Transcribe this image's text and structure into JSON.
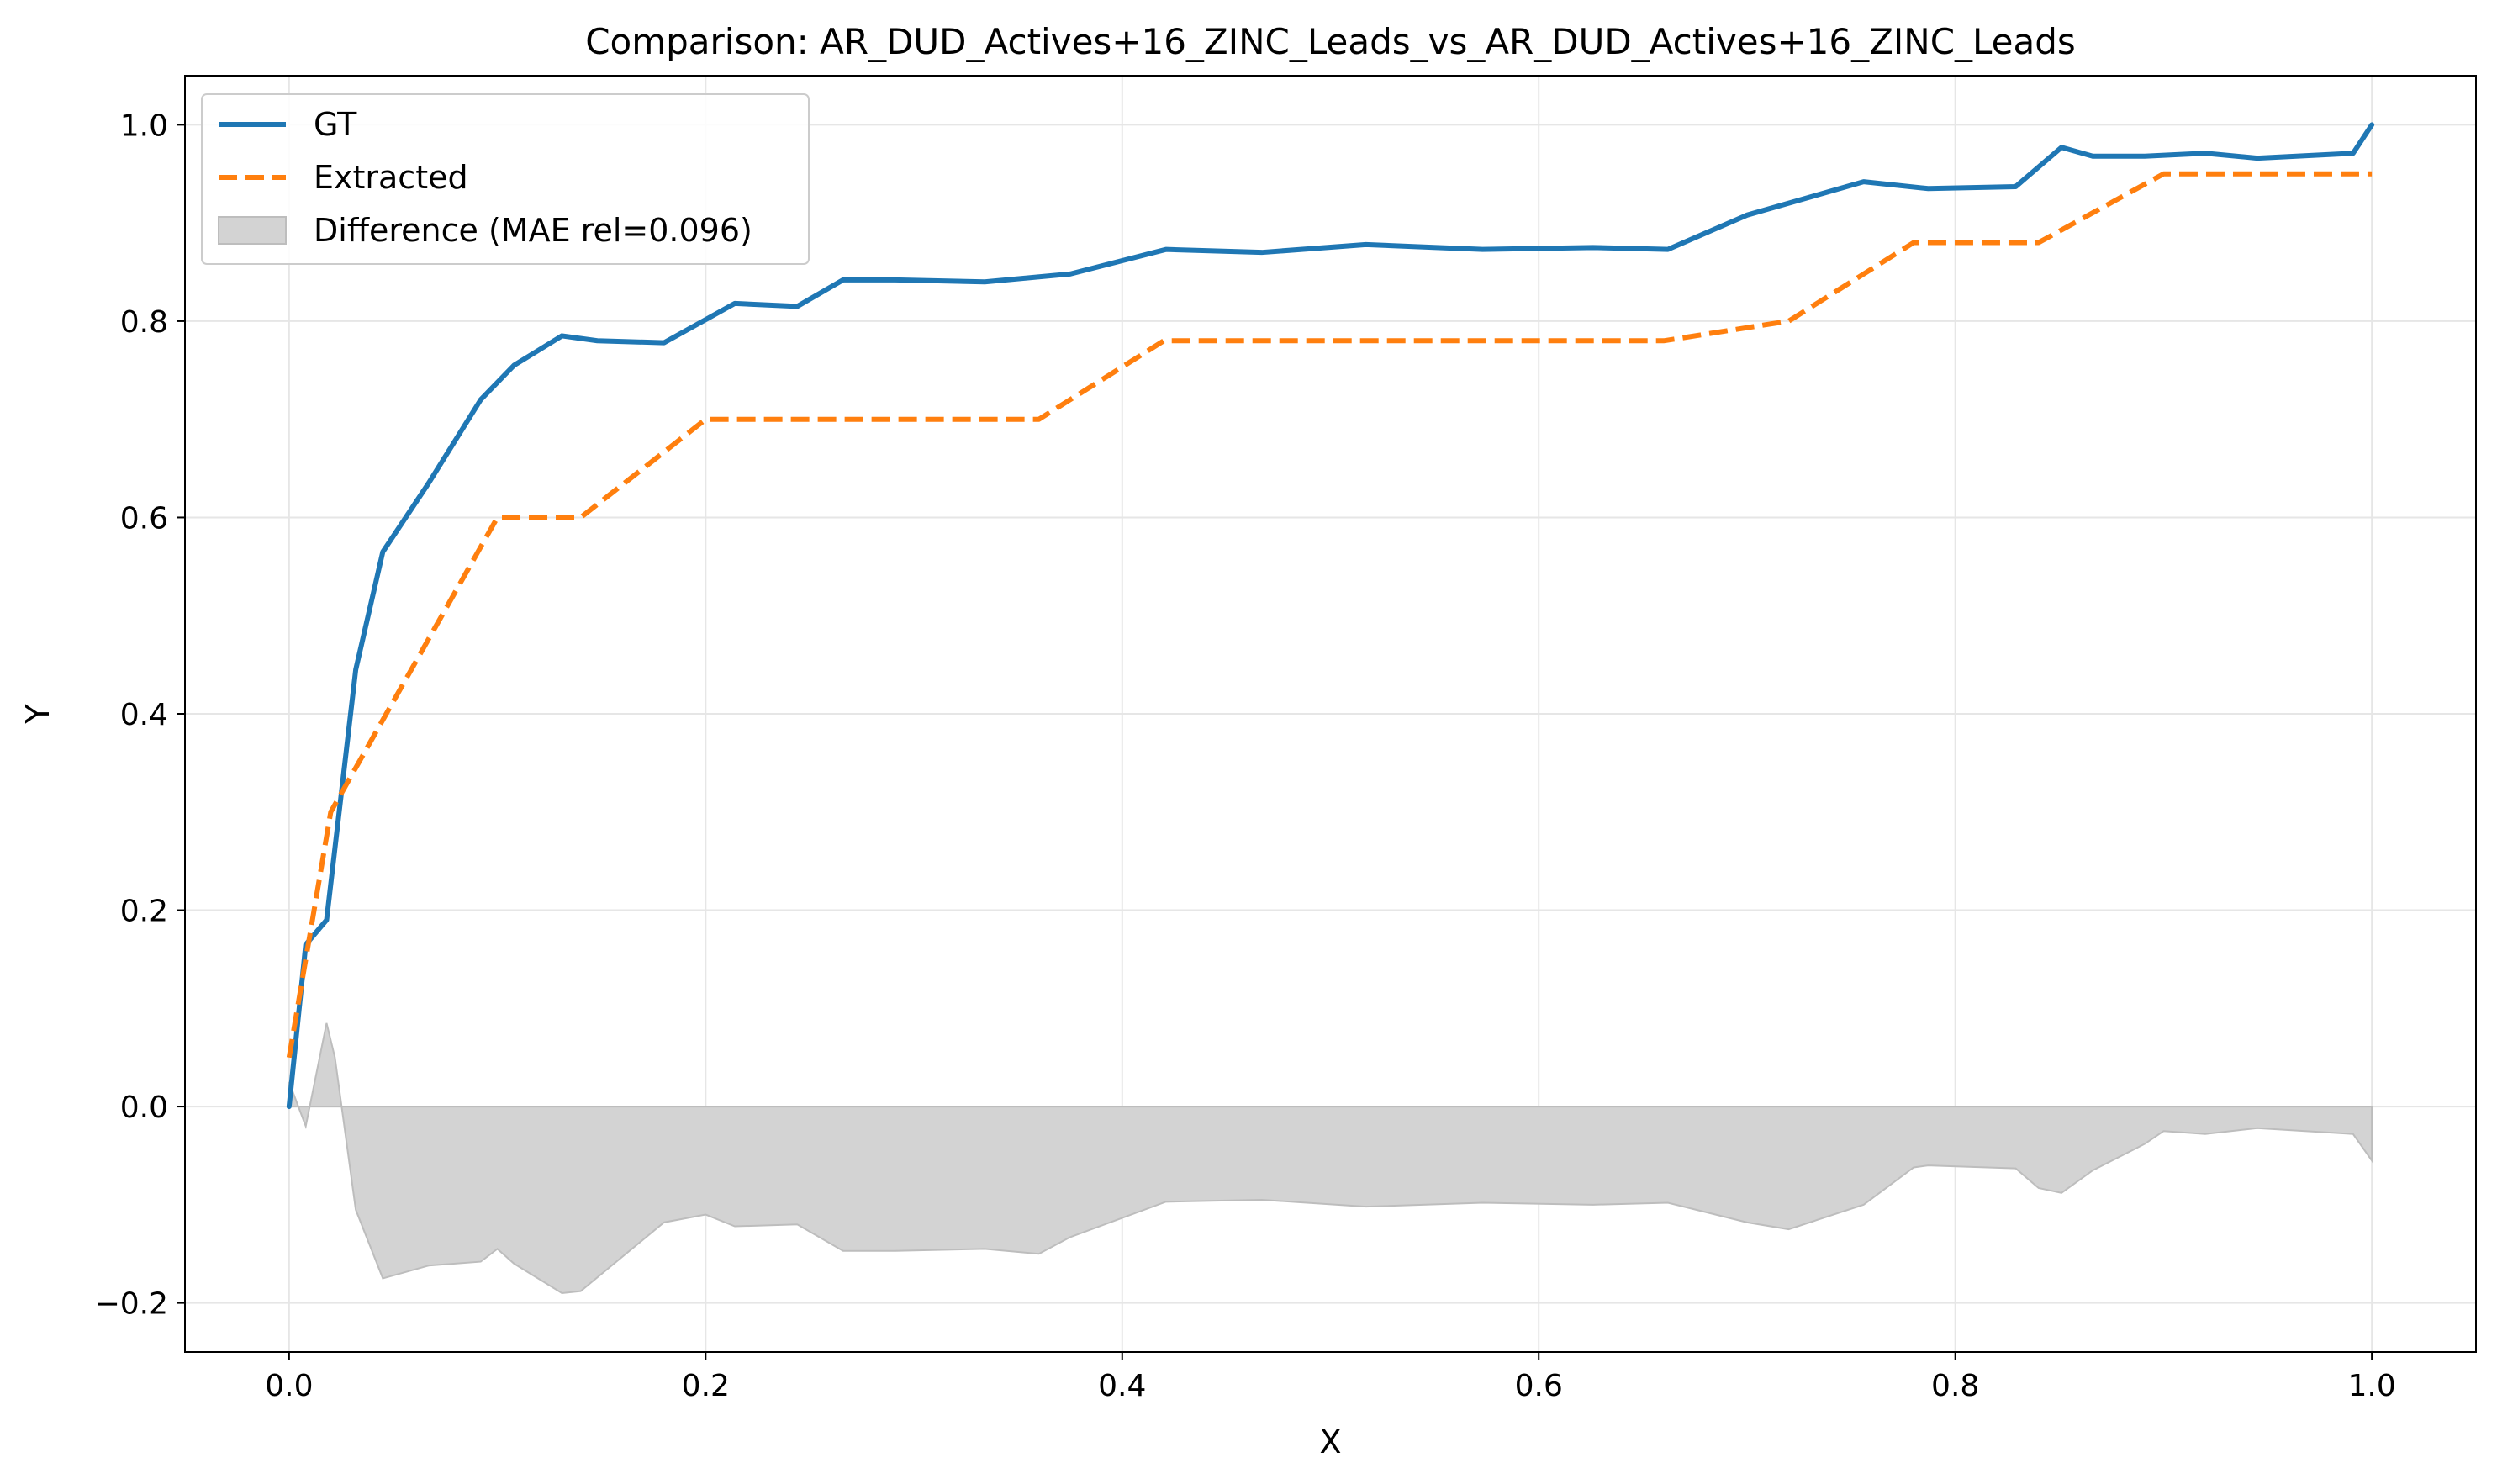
{
  "chart_data": {
    "type": "line",
    "title": "Comparison: AR_DUD_Actives+16_ZINC_Leads_vs_AR_DUD_Actives+16_ZINC_Leads",
    "xlabel": "X",
    "ylabel": "Y",
    "xlim": [
      -0.05,
      1.05
    ],
    "ylim": [
      -0.25,
      1.05
    ],
    "xticks": [
      0.0,
      0.2,
      0.4,
      0.6,
      0.8,
      1.0
    ],
    "xtick_labels": [
      "0.0",
      "0.2",
      "0.4",
      "0.6",
      "0.8",
      "1.0"
    ],
    "yticks": [
      -0.2,
      0.0,
      0.2,
      0.4,
      0.6,
      0.8,
      1.0
    ],
    "ytick_labels": [
      "−0.2",
      "0.0",
      "0.2",
      "0.4",
      "0.6",
      "0.8",
      "1.0"
    ],
    "grid": true,
    "legend_position": "top-left",
    "series": [
      {
        "name": "GT",
        "color": "#1f77b4",
        "style": "solid",
        "x": [
          0.0,
          0.008,
          0.018,
          0.032,
          0.045,
          0.067,
          0.092,
          0.108,
          0.131,
          0.148,
          0.18,
          0.214,
          0.244,
          0.266,
          0.291,
          0.334,
          0.375,
          0.421,
          0.467,
          0.517,
          0.573,
          0.626,
          0.662,
          0.7,
          0.756,
          0.787,
          0.829,
          0.851,
          0.866,
          0.891,
          0.92,
          0.945,
          0.991,
          1.0
        ],
        "y": [
          0.0,
          0.165,
          0.19,
          0.445,
          0.565,
          0.635,
          0.72,
          0.755,
          0.785,
          0.78,
          0.778,
          0.818,
          0.815,
          0.842,
          0.842,
          0.84,
          0.848,
          0.873,
          0.87,
          0.878,
          0.873,
          0.875,
          0.873,
          0.908,
          0.942,
          0.935,
          0.937,
          0.977,
          0.968,
          0.968,
          0.971,
          0.966,
          0.971,
          1.0
        ]
      },
      {
        "name": "Extracted",
        "color": "#ff7f0e",
        "style": "dashed",
        "x": [
          0.0,
          0.02,
          0.1,
          0.14,
          0.2,
          0.36,
          0.42,
          0.66,
          0.72,
          0.78,
          0.84,
          0.9,
          1.0
        ],
        "y": [
          0.05,
          0.3,
          0.6,
          0.6,
          0.7,
          0.7,
          0.78,
          0.78,
          0.8,
          0.88,
          0.88,
          0.95,
          0.95
        ]
      }
    ],
    "fill": {
      "name": "Difference (MAE rel=0.096)",
      "color": "#d3d3d3",
      "x": [
        0.0,
        0.008,
        0.018,
        0.022,
        0.032,
        0.045,
        0.067,
        0.092,
        0.1,
        0.108,
        0.131,
        0.14,
        0.18,
        0.2,
        0.214,
        0.244,
        0.266,
        0.291,
        0.334,
        0.36,
        0.375,
        0.421,
        0.467,
        0.517,
        0.573,
        0.626,
        0.662,
        0.7,
        0.72,
        0.756,
        0.78,
        0.787,
        0.829,
        0.84,
        0.851,
        0.866,
        0.891,
        0.9,
        0.92,
        0.945,
        0.991,
        1.0
      ],
      "y": [
        0.025,
        -0.02,
        0.085,
        0.05,
        -0.105,
        -0.175,
        -0.162,
        -0.158,
        -0.145,
        -0.16,
        -0.19,
        -0.188,
        -0.118,
        -0.11,
        -0.122,
        -0.12,
        -0.147,
        -0.147,
        -0.145,
        -0.15,
        -0.133,
        -0.097,
        -0.095,
        -0.102,
        -0.098,
        -0.1,
        -0.098,
        -0.118,
        -0.125,
        -0.1,
        -0.062,
        -0.06,
        -0.063,
        -0.083,
        -0.088,
        -0.065,
        -0.038,
        -0.025,
        -0.028,
        -0.022,
        -0.028,
        -0.055
      ]
    }
  }
}
